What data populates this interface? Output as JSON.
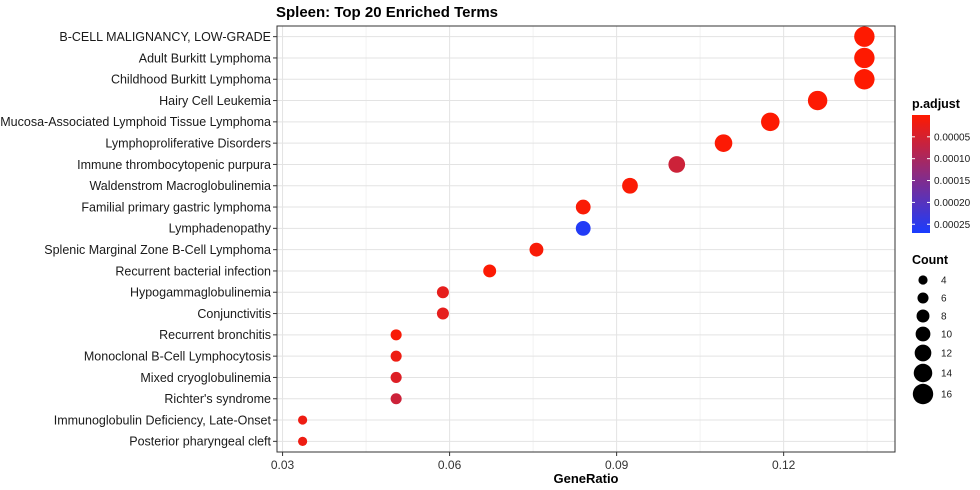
{
  "chart_data": {
    "type": "scatter",
    "title": "Spleen: Top 20 Enriched Terms",
    "xlabel": "GeneRatio",
    "ylabel": "",
    "xlim": [
      0.029,
      0.14
    ],
    "x_ticks": [
      0.03,
      0.06,
      0.09,
      0.12
    ],
    "x_tick_labels": [
      "0.03",
      "0.06",
      "0.09",
      "0.12"
    ],
    "grid": true,
    "legend_position": "right",
    "color_legend": {
      "title": "p.adjust",
      "ticks": [
        5e-05,
        0.0001,
        0.00015,
        0.0002,
        0.00025
      ],
      "tick_labels": [
        "0.00005",
        "0.00010",
        "0.00015",
        "0.00020",
        "0.00025"
      ],
      "range": [
        1e-07,
        0.00027
      ],
      "low_color": "#ff1a00",
      "high_color": "#1a3cff"
    },
    "size_legend": {
      "title": "Count",
      "values": [
        4,
        6,
        8,
        10,
        12,
        14,
        16
      ]
    },
    "points": [
      {
        "term": "B-CELL MALIGNANCY, LOW-GRADE",
        "gene_ratio": 0.1345,
        "count": 16,
        "p_adjust": 1e-06
      },
      {
        "term": "Adult Burkitt Lymphoma",
        "gene_ratio": 0.1345,
        "count": 16,
        "p_adjust": 1e-06
      },
      {
        "term": "Childhood Burkitt Lymphoma",
        "gene_ratio": 0.1345,
        "count": 16,
        "p_adjust": 1e-06
      },
      {
        "term": "Hairy Cell Leukemia",
        "gene_ratio": 0.1261,
        "count": 15,
        "p_adjust": 3e-06
      },
      {
        "term": "Mucosa-Associated Lymphoid Tissue Lymphoma",
        "gene_ratio": 0.1176,
        "count": 14,
        "p_adjust": 2e-06
      },
      {
        "term": "Lymphoproliferative Disorders",
        "gene_ratio": 0.1092,
        "count": 13,
        "p_adjust": 4e-06
      },
      {
        "term": "Immune thrombocytopenic purpura",
        "gene_ratio": 0.1008,
        "count": 12,
        "p_adjust": 6e-05
      },
      {
        "term": "Waldenstrom Macroglobulinemia",
        "gene_ratio": 0.0924,
        "count": 11,
        "p_adjust": 5e-06
      },
      {
        "term": "Familial primary gastric lymphoma",
        "gene_ratio": 0.084,
        "count": 10,
        "p_adjust": 6e-06
      },
      {
        "term": "Lymphadenopathy",
        "gene_ratio": 0.084,
        "count": 10,
        "p_adjust": 0.00026
      },
      {
        "term": "Splenic Marginal Zone B-Cell Lymphoma",
        "gene_ratio": 0.0756,
        "count": 9,
        "p_adjust": 8e-06
      },
      {
        "term": "Recurrent bacterial infection",
        "gene_ratio": 0.0672,
        "count": 8,
        "p_adjust": 4e-06
      },
      {
        "term": "Hypogammaglobulinemia",
        "gene_ratio": 0.0588,
        "count": 7,
        "p_adjust": 3e-05
      },
      {
        "term": "Conjunctivitis",
        "gene_ratio": 0.0588,
        "count": 7,
        "p_adjust": 3e-05
      },
      {
        "term": "Recurrent bronchitis",
        "gene_ratio": 0.0504,
        "count": 6,
        "p_adjust": 8e-06
      },
      {
        "term": "Monoclonal B-Cell Lymphocytosis",
        "gene_ratio": 0.0504,
        "count": 6,
        "p_adjust": 2e-05
      },
      {
        "term": "Mixed cryoglobulinemia",
        "gene_ratio": 0.0504,
        "count": 6,
        "p_adjust": 4e-05
      },
      {
        "term": "Richter's syndrome",
        "gene_ratio": 0.0504,
        "count": 6,
        "p_adjust": 6e-05
      },
      {
        "term": "Immunoglobulin Deficiency, Late-Onset",
        "gene_ratio": 0.0336,
        "count": 4,
        "p_adjust": 2e-05
      },
      {
        "term": "Posterior pharyngeal cleft",
        "gene_ratio": 0.0336,
        "count": 4,
        "p_adjust": 2e-05
      }
    ]
  }
}
